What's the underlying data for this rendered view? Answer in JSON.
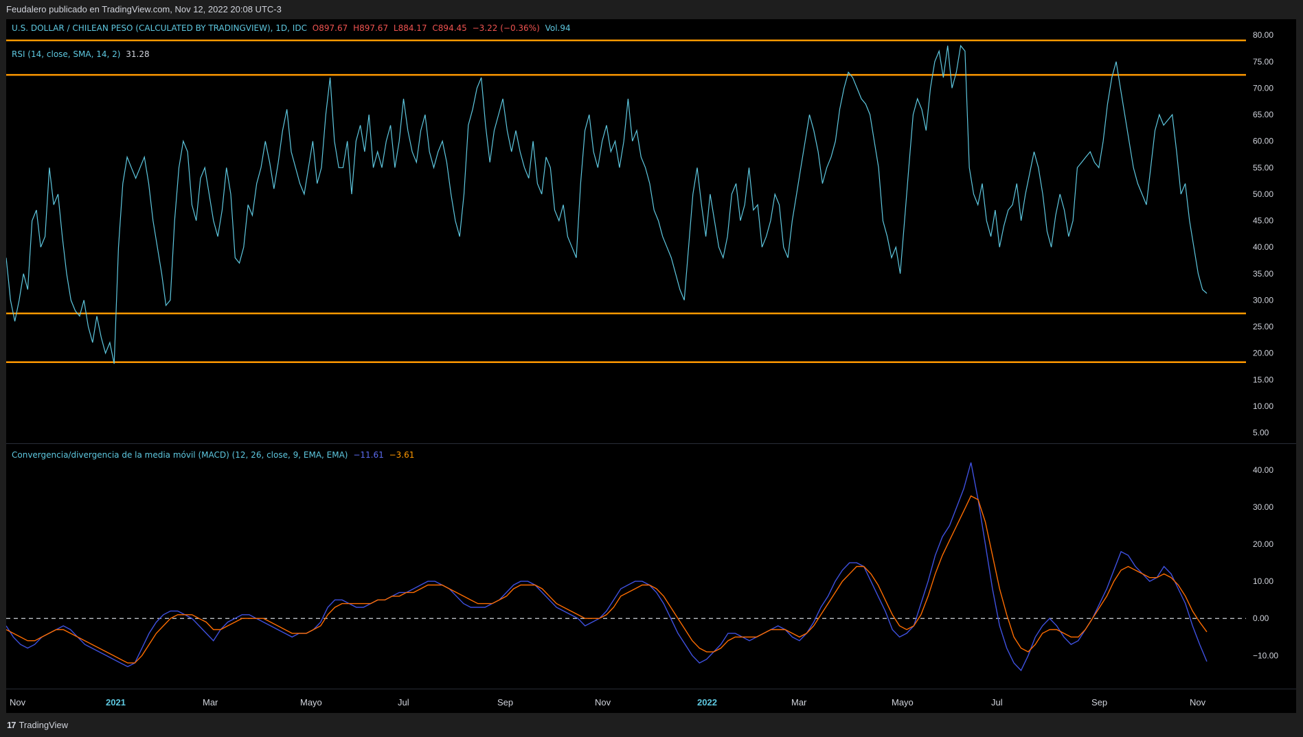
{
  "header": {
    "published_by": "Feudalero publicado en TradingView.com, Nov 12, 2022 20:08 UTC-3"
  },
  "symbol_legend": {
    "name": "U.S. DOLLAR / CHILEAN PESO (CALCULATED BY TRADINGVIEW), 1D, IDC",
    "open": "O897.67",
    "high": "H897.67",
    "low": "L884.17",
    "close": "C894.45",
    "change": "−3.22 (−0.36%)",
    "volume": "Vol.94"
  },
  "rsi_legend": {
    "label": "RSI (14, close, SMA, 14, 2)",
    "value": "31.28"
  },
  "macd_legend": {
    "label": "Convergencia/divergencia de la media móvil (MACD) (12, 26, close, 9, EMA, EMA)",
    "macd_value": "−11.61",
    "signal_value": "−3.61"
  },
  "footer": {
    "brand": "TradingView"
  },
  "colors": {
    "rsi_line": "#5ec8e0",
    "levels": "#ff9800",
    "macd_line": "#3f51e0",
    "signal_line": "#ff6d00",
    "background": "#000000"
  },
  "chart_data": [
    {
      "type": "line",
      "x_ticks": [
        "Nov",
        "2021",
        "Mar",
        "Mayo",
        "Jul",
        "Sep",
        "Nov",
        "2022",
        "Mar",
        "Mayo",
        "Jul",
        "Sep",
        "Nov"
      ],
      "y_ticks": [
        "80.00",
        "75.00",
        "70.00",
        "65.00",
        "60.00",
        "55.00",
        "50.00",
        "45.00",
        "40.00",
        "35.00",
        "30.00",
        "25.00",
        "20.00",
        "15.00",
        "10.00",
        "5.00"
      ],
      "ylim": [
        3,
        83
      ],
      "levels": [
        79,
        72.5,
        27.5,
        18.3
      ],
      "series": [
        {
          "values": [
            38,
            30,
            26,
            30,
            35,
            32,
            45,
            47,
            40,
            42,
            55,
            48,
            50,
            42,
            35,
            30,
            28,
            27,
            30,
            25,
            22,
            27,
            23,
            20,
            22,
            18,
            40,
            52,
            57,
            55,
            53,
            55,
            57,
            52,
            45,
            40,
            35,
            29,
            30,
            45,
            55,
            60,
            58,
            48,
            45,
            53,
            55,
            50,
            45,
            42,
            47,
            55,
            50,
            38,
            37,
            40,
            48,
            46,
            52,
            55,
            60,
            56,
            51,
            56,
            62,
            66,
            58,
            55,
            52,
            50,
            55,
            60,
            52,
            55,
            65,
            72,
            60,
            55,
            55,
            60,
            50,
            60,
            63,
            58,
            65,
            55,
            58,
            55,
            60,
            63,
            55,
            60,
            68,
            62,
            58,
            56,
            62,
            65,
            58,
            55,
            58,
            60,
            56,
            50,
            45,
            42,
            50,
            63,
            66,
            70,
            72,
            63,
            56,
            62,
            65,
            68,
            62,
            58,
            62,
            58,
            55,
            53,
            60,
            52,
            50,
            57,
            55,
            47,
            45,
            48,
            42,
            40,
            38,
            52,
            62,
            65,
            58,
            55,
            60,
            63,
            58,
            60,
            55,
            60,
            68,
            60,
            62,
            57,
            55,
            52,
            47,
            45,
            42,
            40,
            38,
            35,
            32,
            30,
            40,
            50,
            55,
            48,
            42,
            50,
            45,
            40,
            38,
            42,
            50,
            52,
            45,
            48,
            55,
            47,
            48,
            40,
            42,
            45,
            50,
            48,
            40,
            38,
            45,
            50,
            55,
            60,
            65,
            62,
            58,
            52,
            55,
            57,
            60,
            66,
            70,
            73,
            72,
            70,
            68,
            67,
            65,
            60,
            55,
            45,
            42,
            38,
            40,
            35,
            45,
            55,
            65,
            68,
            66,
            62,
            70,
            75,
            77,
            72,
            78,
            70,
            73,
            78,
            77,
            55,
            50,
            48,
            52,
            45,
            42,
            47,
            40,
            44,
            47,
            48,
            52,
            45,
            50,
            54,
            58,
            55,
            50,
            43,
            40,
            46,
            50,
            47,
            42,
            45,
            55,
            56,
            57,
            58,
            56,
            55,
            60,
            67,
            72,
            75,
            70,
            65,
            60,
            55,
            52,
            50,
            48,
            55,
            62,
            65,
            63,
            64,
            65,
            58,
            50,
            52,
            45,
            40,
            35,
            32,
            31.28
          ]
        }
      ]
    },
    {
      "type": "line",
      "y_ticks": [
        "40.00",
        "30.00",
        "20.00",
        "10.00",
        "0.00",
        "−10.00"
      ],
      "ylim": [
        -19,
        47
      ],
      "zero_line": 0,
      "series": [
        {
          "values": [
            -2,
            -5,
            -7,
            -8,
            -7,
            -5,
            -4,
            -3,
            -2,
            -3,
            -5,
            -7,
            -8,
            -9,
            -10,
            -11,
            -12,
            -13,
            -12,
            -8,
            -4,
            -1,
            1,
            2,
            2,
            1,
            0,
            -2,
            -4,
            -6,
            -3,
            -1,
            0,
            1,
            1,
            0,
            -1,
            -2,
            -3,
            -4,
            -5,
            -4,
            -4,
            -3,
            -1,
            3,
            5,
            5,
            4,
            3,
            3,
            4,
            5,
            5,
            6,
            7,
            7,
            8,
            9,
            10,
            10,
            9,
            8,
            6,
            4,
            3,
            3,
            3,
            4,
            5,
            7,
            9,
            10,
            10,
            9,
            7,
            5,
            3,
            2,
            1,
            0,
            -2,
            -1,
            0,
            2,
            5,
            8,
            9,
            10,
            10,
            9,
            7,
            4,
            0,
            -4,
            -7,
            -10,
            -12,
            -11,
            -9,
            -7,
            -4,
            -4,
            -5,
            -6,
            -5,
            -4,
            -3,
            -2,
            -3,
            -5,
            -6,
            -4,
            -1,
            3,
            6,
            10,
            13,
            15,
            15,
            14,
            10,
            6,
            2,
            -3,
            -5,
            -4,
            -2,
            4,
            10,
            17,
            22,
            25,
            30,
            35,
            42,
            32,
            20,
            8,
            -2,
            -8,
            -12,
            -14,
            -10,
            -5,
            -2,
            0,
            -2,
            -5,
            -7,
            -6,
            -3,
            0,
            4,
            8,
            13,
            18,
            17,
            14,
            12,
            10,
            11,
            14,
            12,
            8,
            4,
            -2,
            -7,
            -11.61
          ]
        },
        {
          "values": [
            -3,
            -4,
            -5,
            -6,
            -6,
            -5,
            -4,
            -3,
            -3,
            -4,
            -5,
            -6,
            -7,
            -8,
            -9,
            -10,
            -11,
            -12,
            -12,
            -10,
            -7,
            -4,
            -2,
            0,
            1,
            1,
            1,
            0,
            -1,
            -3,
            -3,
            -2,
            -1,
            0,
            0,
            0,
            0,
            -1,
            -2,
            -3,
            -4,
            -4,
            -4,
            -3,
            -2,
            1,
            3,
            4,
            4,
            4,
            4,
            4,
            5,
            5,
            6,
            6,
            7,
            7,
            8,
            9,
            9,
            9,
            8,
            7,
            6,
            5,
            4,
            4,
            4,
            5,
            6,
            8,
            9,
            9,
            9,
            8,
            6,
            4,
            3,
            2,
            1,
            0,
            0,
            0,
            1,
            3,
            6,
            7,
            8,
            9,
            9,
            8,
            6,
            3,
            0,
            -3,
            -6,
            -8,
            -9,
            -9,
            -8,
            -6,
            -5,
            -5,
            -5,
            -5,
            -4,
            -3,
            -3,
            -3,
            -4,
            -5,
            -4,
            -2,
            1,
            4,
            7,
            10,
            12,
            14,
            14,
            12,
            9,
            5,
            1,
            -2,
            -3,
            -2,
            1,
            6,
            12,
            17,
            21,
            25,
            29,
            33,
            32,
            26,
            17,
            8,
            1,
            -5,
            -8,
            -9,
            -7,
            -4,
            -3,
            -3,
            -4,
            -5,
            -5,
            -3,
            0,
            3,
            6,
            10,
            13,
            14,
            13,
            12,
            11,
            11,
            12,
            11,
            9,
            6,
            2,
            -1,
            -3.61
          ]
        }
      ]
    }
  ]
}
